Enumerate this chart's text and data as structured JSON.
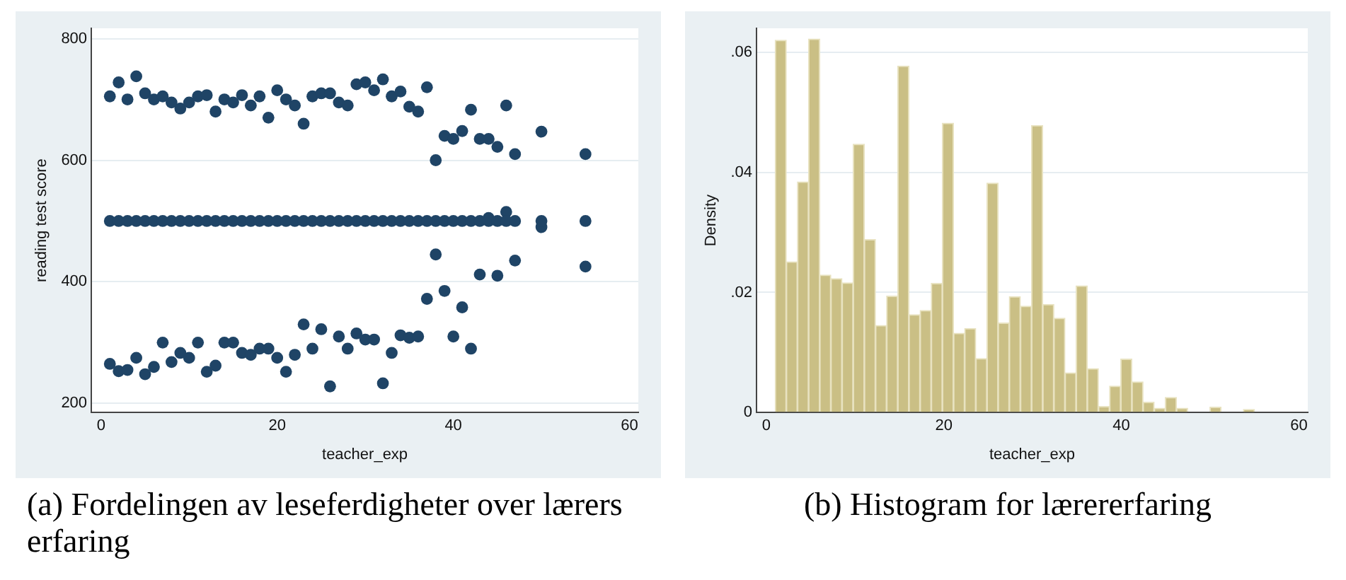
{
  "chart_data": [
    {
      "type": "scatter",
      "xlabel": "teacher_exp",
      "ylabel": "reading test score",
      "color": "#1f4466",
      "marker": "circle",
      "grid": "y",
      "xlim": [
        -1.1,
        61
      ],
      "ylim": [
        185,
        817
      ],
      "xticks": [
        0,
        20,
        40,
        60
      ],
      "yticks": [
        200,
        400,
        600,
        800
      ],
      "x": [
        1,
        1,
        2,
        2,
        3,
        3,
        4,
        4,
        5,
        5,
        6,
        6,
        7,
        7,
        8,
        8,
        9,
        9,
        10,
        10,
        11,
        11,
        12,
        12,
        13,
        13,
        14,
        14,
        15,
        15,
        16,
        16,
        17,
        17,
        18,
        18,
        19,
        19,
        20,
        20,
        21,
        21,
        22,
        22,
        23,
        23,
        24,
        24,
        25,
        25,
        26,
        26,
        27,
        27,
        28,
        28,
        29,
        29,
        30,
        30,
        31,
        31,
        32,
        32,
        33,
        33,
        34,
        34,
        35,
        35,
        36,
        36,
        37,
        37,
        38,
        38,
        39,
        39,
        40,
        40,
        41,
        41,
        42,
        42,
        43,
        43,
        44,
        44,
        45,
        45,
        46,
        46,
        47,
        47,
        50,
        50,
        55,
        55,
        1,
        2,
        3,
        4,
        5,
        6,
        7,
        8,
        9,
        10,
        11,
        12,
        13,
        14,
        15,
        16,
        17,
        18,
        19,
        20,
        21,
        22,
        23,
        24,
        25,
        26,
        27,
        28,
        29,
        30,
        31,
        32,
        33,
        34,
        35,
        36,
        37,
        38,
        39,
        40,
        41,
        42,
        43,
        44,
        45,
        46,
        47,
        50,
        55
      ],
      "values": [
        705,
        265,
        728,
        253,
        700,
        255,
        738,
        275,
        710,
        248,
        700,
        260,
        705,
        300,
        695,
        268,
        685,
        283,
        695,
        275,
        705,
        300,
        707,
        252,
        680,
        262,
        700,
        300,
        695,
        300,
        707,
        283,
        690,
        280,
        705,
        290,
        670,
        290,
        715,
        275,
        700,
        252,
        690,
        280,
        660,
        330,
        705,
        290,
        710,
        322,
        710,
        228,
        695,
        310,
        690,
        290,
        725,
        315,
        728,
        305,
        715,
        305,
        733,
        233,
        705,
        283,
        713,
        312,
        688,
        308,
        680,
        310,
        720,
        372,
        600,
        445,
        640,
        385,
        635,
        310,
        648,
        358,
        683,
        290,
        635,
        412,
        635,
        505,
        622,
        410,
        690,
        515,
        610,
        435,
        647,
        490,
        610,
        425,
        500,
        500,
        500,
        500,
        500,
        500,
        500,
        500,
        500,
        500,
        500,
        500,
        500,
        500,
        500,
        500,
        500,
        500,
        500,
        500,
        500,
        500,
        500,
        500,
        500,
        500,
        500,
        500,
        500,
        500,
        500,
        500,
        500,
        500,
        500,
        500,
        500,
        500,
        500,
        500,
        500,
        500,
        500,
        500,
        500,
        500,
        500,
        500,
        500
      ],
      "annotations": [
        "(a) Fordelingen av leseferdigheter over lærers erfaring"
      ]
    },
    {
      "type": "histogram",
      "xlabel": "teacher_exp",
      "ylabel": "Density",
      "color": "#cabf85",
      "grid": "y",
      "xlim": [
        -1.1,
        61
      ],
      "ylim": [
        0,
        0.064
      ],
      "xticks": [
        0,
        20,
        40,
        60
      ],
      "yticks": [
        0,
        {
          "value": 0.02,
          "label": ".02"
        },
        {
          "value": 0.04,
          "label": ".04"
        },
        {
          "value": 0.06,
          "label": ".06"
        }
      ],
      "bins": [
        1,
        2.26,
        3.51,
        4.77,
        6.02,
        7.28,
        8.53,
        9.79,
        11.05,
        12.3,
        13.56,
        14.81,
        16.07,
        17.33,
        18.58,
        19.84,
        21.09,
        22.35,
        23.6,
        24.86,
        26.12,
        27.37,
        28.63,
        29.88,
        31.14,
        32.4,
        33.65,
        34.91,
        36.16,
        37.42,
        38.67,
        39.93,
        41.19,
        42.44,
        43.7,
        44.95,
        46.21,
        47.47,
        48.72,
        49.98,
        51.23,
        52.49,
        53.74,
        55
      ],
      "values": [
        0.062,
        0.0251,
        0.0384,
        0.0622,
        0.0229,
        0.0223,
        0.0216,
        0.0447,
        0.0288,
        0.0145,
        0.0194,
        0.0577,
        0.0163,
        0.017,
        0.0215,
        0.0482,
        0.0132,
        0.014,
        0.009,
        0.0382,
        0.0149,
        0.0193,
        0.0177,
        0.0478,
        0.018,
        0.0157,
        0.0066,
        0.0211,
        0.0073,
        0.001,
        0.0044,
        0.0089,
        0.0051,
        0.0017,
        0.0007,
        0.0025,
        0.0007,
        0,
        0,
        0.0009,
        0,
        0,
        0.0005
      ],
      "annotations": [
        "(b) Histogram for lærererfaring"
      ]
    }
  ]
}
